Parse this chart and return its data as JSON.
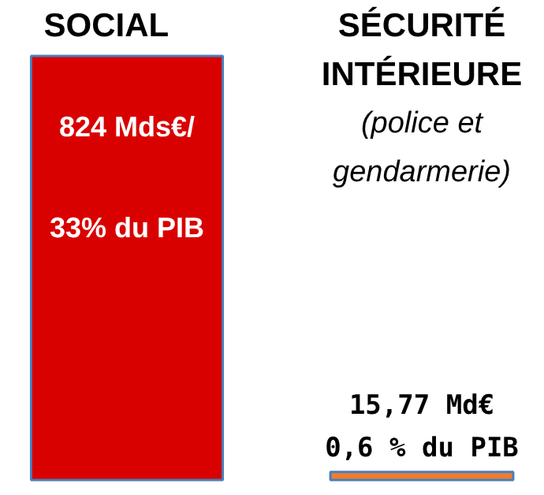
{
  "chart_data": {
    "type": "bar",
    "categories": [
      "SOCIAL",
      "SÉCURITÉ INTÉRIEURE"
    ],
    "values": [
      824,
      15.77
    ],
    "colors": [
      "#d90000",
      "#ed7d31"
    ],
    "value_labels": [
      "824 Mds€/\n\n33% du PIB",
      "15,77 Md€\n0,6 % du PIB"
    ],
    "annotations": [
      "(police et gendarmerie)"
    ]
  }
}
